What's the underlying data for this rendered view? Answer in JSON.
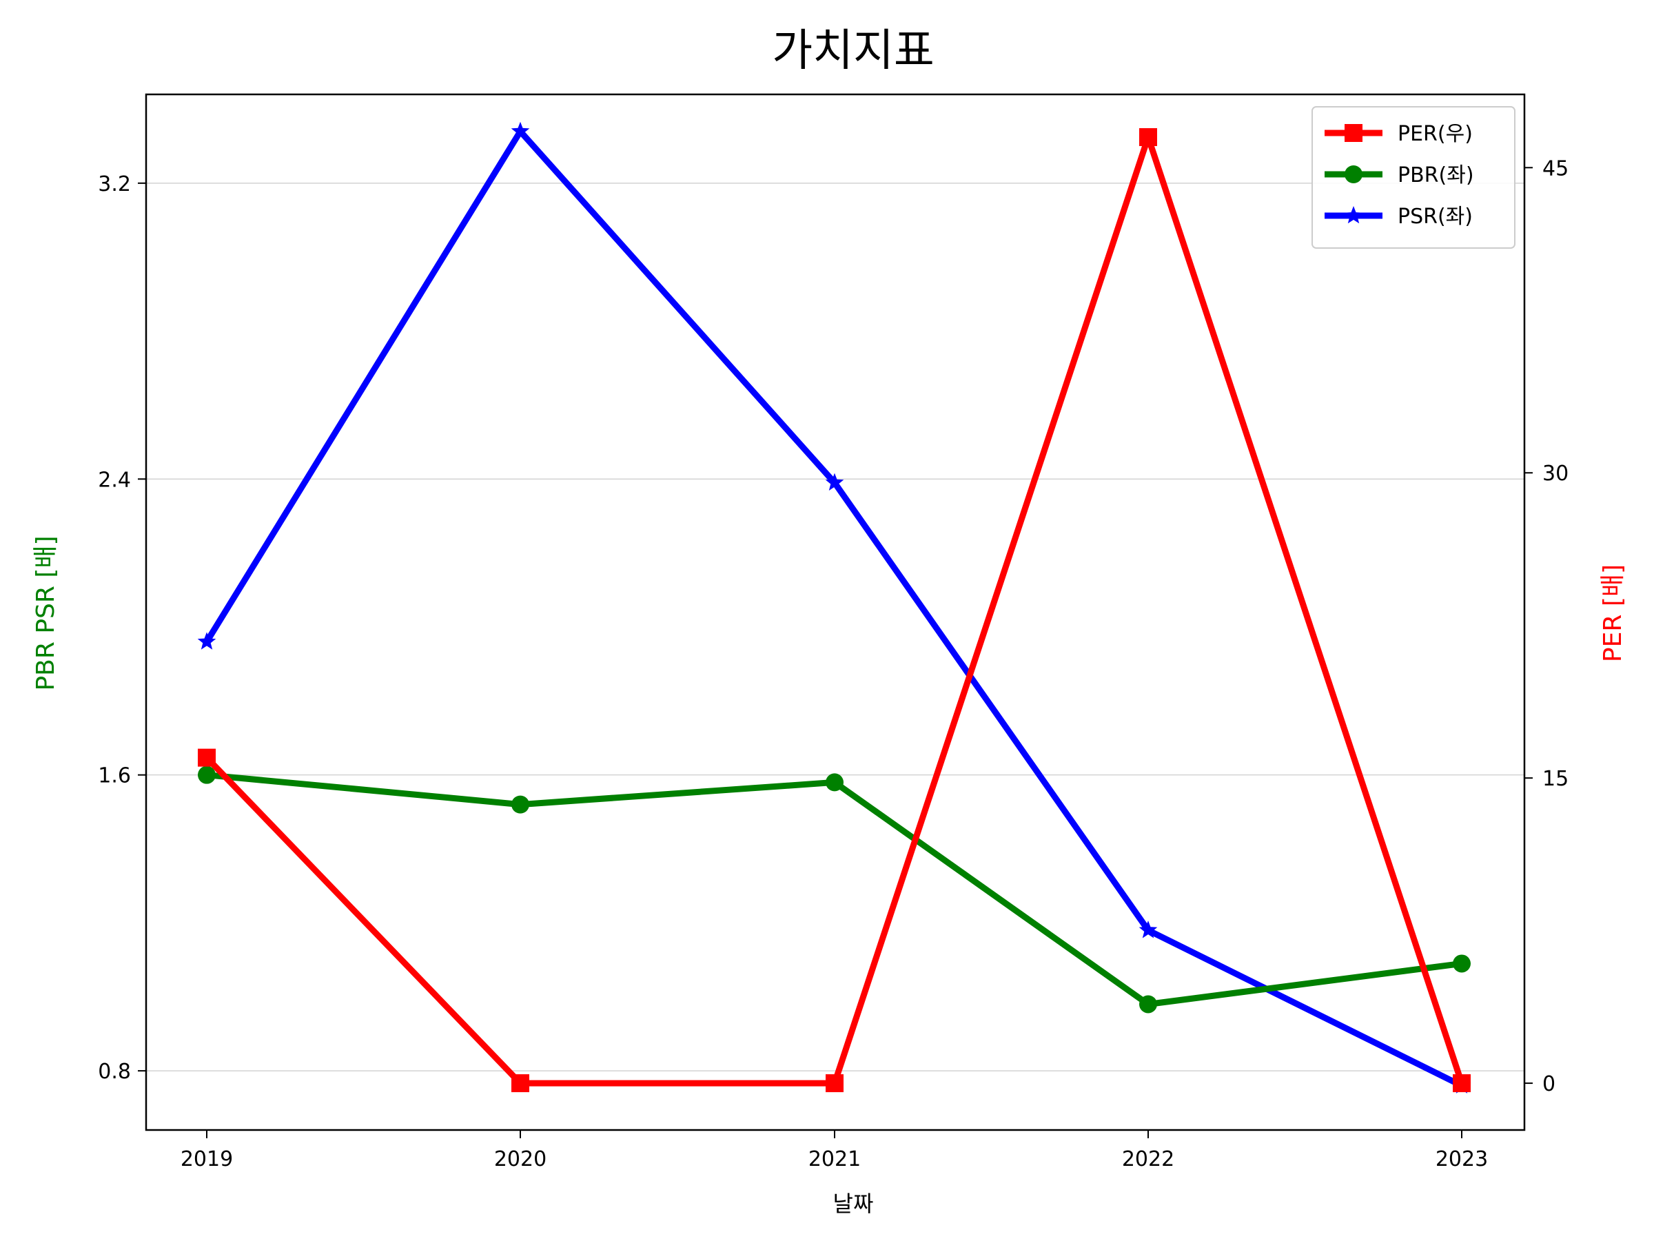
{
  "chart_data": {
    "type": "line",
    "title": "가치지표",
    "xlabel": "날짜",
    "ylabel_left": "PBR PSR [배]",
    "ylabel_right": "PER [배]",
    "categories": [
      "2019",
      "2020",
      "2021",
      "2022",
      "2023"
    ],
    "left_axis": {
      "ylim": [
        0.64,
        3.44
      ],
      "ticks": [
        0.8,
        1.6,
        2.4,
        3.2
      ],
      "tick_labels": [
        "0.8",
        "1.6",
        "2.4",
        "3.2"
      ],
      "color": "#008000"
    },
    "right_axis": {
      "ylim": [
        -2.3,
        48.6
      ],
      "ticks": [
        0,
        15,
        30,
        45
      ],
      "tick_labels": [
        "0",
        "15",
        "30",
        "45"
      ],
      "color": "#ff0000"
    },
    "series": [
      {
        "name": "PER(우)",
        "axis": "right",
        "color": "#ff0000",
        "marker": "square",
        "values": [
          16.0,
          0.0,
          0.0,
          46.5,
          0.0
        ]
      },
      {
        "name": "PBR(좌)",
        "axis": "left",
        "color": "#008000",
        "marker": "circle",
        "values": [
          1.6,
          1.52,
          1.58,
          0.98,
          1.09
        ]
      },
      {
        "name": "PSR(좌)",
        "axis": "left",
        "color": "#0000ff",
        "marker": "star",
        "values": [
          1.96,
          3.34,
          2.39,
          1.18,
          0.76
        ]
      }
    ],
    "legend": {
      "location": "upper right",
      "entries": [
        "PER(우)",
        "PBR(좌)",
        "PSR(좌)"
      ]
    },
    "grid": "horizontal"
  }
}
